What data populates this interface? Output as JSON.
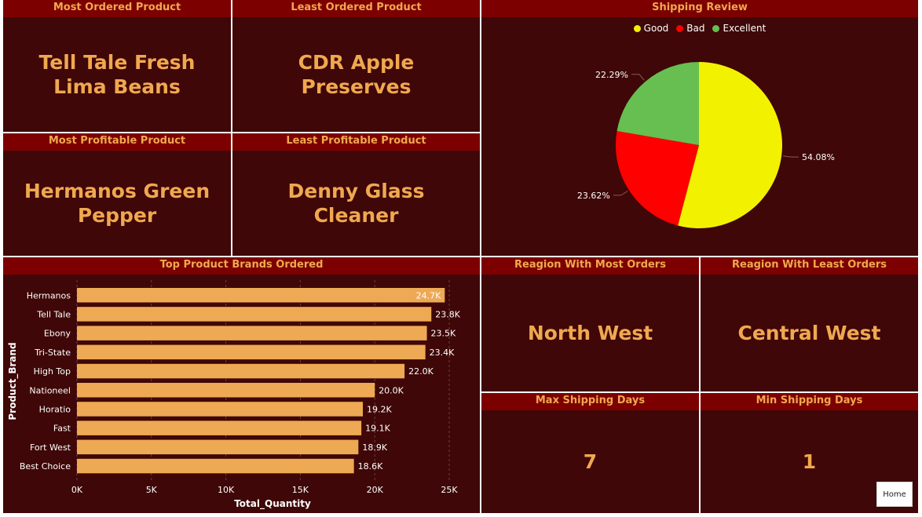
{
  "cards": {
    "most_ordered": {
      "title": "Most Ordered Product",
      "value": "Tell Tale Fresh Lima Beans"
    },
    "least_ordered": {
      "title": "Least Ordered Product",
      "value": "CDR Apple Preserves"
    },
    "most_profitable": {
      "title": "Most Profitable Product",
      "value": "Hermanos Green Pepper"
    },
    "least_profitable": {
      "title": "Least Profitable Product",
      "value": "Denny Glass Cleaner"
    },
    "region_most": {
      "title": "Reagion With Most Orders",
      "value": "North West"
    },
    "region_least": {
      "title": "Reagion With Least Orders",
      "value": "Central West"
    },
    "max_ship": {
      "title": "Max Shipping Days",
      "value": "7"
    },
    "min_ship": {
      "title": "Min Shipping Days",
      "value": "1"
    }
  },
  "home_button": "Home",
  "colors": {
    "panel_bg": "#3f0707",
    "header_bg": "#7d0000",
    "accent": "#f0a850",
    "bar": "#eea954",
    "good": "#f2f200",
    "bad": "#ff0000",
    "excellent": "#66bf50"
  },
  "chart_data": [
    {
      "type": "pie",
      "title": "Shipping Review",
      "legend_position": "top-center",
      "categories": [
        "Good",
        "Bad",
        "Excellent"
      ],
      "values": [
        54.08,
        23.62,
        22.29
      ],
      "labels": [
        "54.08%",
        "23.62%",
        "22.29%"
      ],
      "colors": [
        "#f2f200",
        "#ff0000",
        "#66bf50"
      ]
    },
    {
      "type": "bar",
      "orientation": "horizontal",
      "title": "Top Product Brands Ordered",
      "xlabel": "Total_Quantity",
      "ylabel": "Product_Brand",
      "categories": [
        "Hermanos",
        "Tell Tale",
        "Ebony",
        "Tri-State",
        "High Top",
        "Nationeel",
        "Horatio",
        "Fast",
        "Fort West",
        "Best Choice"
      ],
      "values": [
        24700,
        23800,
        23500,
        23400,
        22000,
        20000,
        19200,
        19100,
        18900,
        18600
      ],
      "data_labels": [
        "24.7K",
        "23.8K",
        "23.5K",
        "23.4K",
        "22.0K",
        "20.0K",
        "19.2K",
        "19.1K",
        "18.9K",
        "18.6K"
      ],
      "xlim": [
        0,
        25000
      ],
      "xticks": [
        0,
        5000,
        10000,
        15000,
        20000,
        25000
      ],
      "xtick_labels": [
        "0K",
        "5K",
        "10K",
        "15K",
        "20K",
        "25K"
      ]
    }
  ]
}
